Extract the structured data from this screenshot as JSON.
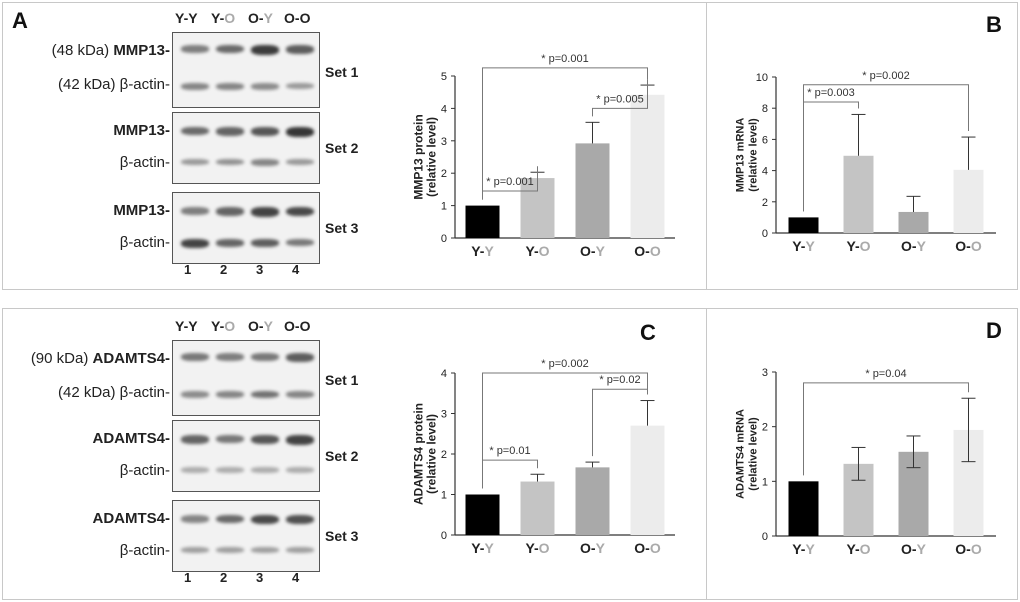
{
  "panels": {
    "A": {
      "label": "A",
      "lane_headers": [
        {
          "left": "Y",
          "right": "Y",
          "right_color": "#222222"
        },
        {
          "left": "Y",
          "right": "O",
          "right_color": "#aaaaaa"
        },
        {
          "left": "O",
          "right": "Y",
          "right_color": "#aaaaaa"
        },
        {
          "left": "O",
          "right": "O",
          "right_color": "#222222"
        }
      ],
      "sets": [
        {
          "set_label": "Set 1",
          "target_label": "(48 kDa) MMP13-",
          "target_kda": "(48 kDa) ",
          "target_name": "MMP13-",
          "actin_label": "(42 kDa) β-actin-"
        },
        {
          "set_label": "Set 2",
          "target_label": "MMP13-",
          "target_kda": "",
          "target_name": "MMP13-",
          "actin_label": "β-actin-"
        },
        {
          "set_label": "Set 3",
          "target_label": "MMP13-",
          "target_kda": "",
          "target_name": "MMP13-",
          "actin_label": "β-actin-"
        }
      ],
      "lane_numbers": [
        "1",
        "2",
        "3",
        "4"
      ]
    },
    "C_blot": {
      "label": "C",
      "lane_headers": [
        {
          "left": "Y",
          "right": "Y",
          "right_color": "#222222"
        },
        {
          "left": "Y",
          "right": "O",
          "right_color": "#aaaaaa"
        },
        {
          "left": "O",
          "right": "Y",
          "right_color": "#aaaaaa"
        },
        {
          "left": "O",
          "right": "O",
          "right_color": "#222222"
        }
      ],
      "sets": [
        {
          "set_label": "Set 1",
          "target_kda": "(90 kDa) ",
          "target_name": "ADAMTS4-",
          "actin_label": "(42 kDa) β-actin-"
        },
        {
          "set_label": "Set 2",
          "target_kda": "",
          "target_name": "ADAMTS4-",
          "actin_label": "β-actin-"
        },
        {
          "set_label": "Set 3",
          "target_kda": "",
          "target_name": "ADAMTS4-",
          "actin_label": "β-actin-"
        }
      ],
      "lane_numbers": [
        "1",
        "2",
        "3",
        "4"
      ]
    },
    "B": {
      "label": "B"
    },
    "D": {
      "label": "D"
    }
  },
  "colors": {
    "bar_black": "#000000",
    "bar_light": "#c4c4c4",
    "bar_mid": "#a9a9a9",
    "bar_pale": "#ececec",
    "label_grey": "#aaaaaa"
  },
  "chart_data": [
    {
      "id": "mmp13-protein",
      "type": "bar",
      "categories": [
        {
          "left": "Y",
          "right": "Y"
        },
        {
          "left": "Y",
          "right": "O"
        },
        {
          "left": "O",
          "right": "Y"
        },
        {
          "left": "O",
          "right": "O"
        }
      ],
      "values": [
        1.0,
        1.85,
        2.92,
        4.42
      ],
      "errors": [
        0,
        0.18,
        0.65,
        0.3
      ],
      "ylabel": "MMP13 protein\n(relative level)",
      "ylim": [
        0,
        5
      ],
      "yticks": [
        0,
        1,
        2,
        3,
        4,
        5
      ],
      "brackets": [
        {
          "from": 0,
          "to": 1,
          "y": 1.45,
          "label": "p=0.001",
          "star": "*"
        },
        {
          "from": 2,
          "to": 3,
          "y": 4.0,
          "label": "p=0.005",
          "star": "*"
        },
        {
          "from": 0,
          "to": 3,
          "y": 5.25,
          "label": "p=0.001",
          "star": "*"
        }
      ]
    },
    {
      "id": "mmp13-mrna",
      "type": "bar",
      "categories": [
        {
          "left": "Y",
          "right": "Y"
        },
        {
          "left": "Y",
          "right": "O"
        },
        {
          "left": "O",
          "right": "Y"
        },
        {
          "left": "O",
          "right": "O"
        }
      ],
      "values": [
        1.0,
        4.95,
        1.35,
        4.05
      ],
      "errors": [
        0,
        2.65,
        1.0,
        2.1
      ],
      "ylabel": "MMP13 mRNA\n(relative level)",
      "ylim": [
        0,
        10
      ],
      "yticks": [
        0,
        2,
        4,
        6,
        8,
        10
      ],
      "brackets": [
        {
          "from": 0,
          "to": 1,
          "y": 8.4,
          "label": "p=0.003",
          "star": "*"
        },
        {
          "from": 0,
          "to": 3,
          "y": 9.5,
          "label": "p=0.002",
          "star": "*"
        }
      ]
    },
    {
      "id": "adamts4-protein",
      "type": "bar",
      "categories": [
        {
          "left": "Y",
          "right": "Y"
        },
        {
          "left": "Y",
          "right": "O"
        },
        {
          "left": "O",
          "right": "Y"
        },
        {
          "left": "O",
          "right": "O"
        }
      ],
      "values": [
        1.0,
        1.32,
        1.67,
        2.7
      ],
      "errors": [
        0,
        0.18,
        0.13,
        0.62
      ],
      "ylabel": "ADAMTS4 protein\n(relative level)",
      "ylim": [
        0,
        4
      ],
      "yticks": [
        0,
        1,
        2,
        3,
        4
      ],
      "brackets": [
        {
          "from": 0,
          "to": 1,
          "y": 1.85,
          "label": "p=0.01",
          "star": "*"
        },
        {
          "from": 2,
          "to": 3,
          "y": 3.6,
          "label": "p=0.02",
          "star": "*"
        },
        {
          "from": 0,
          "to": 3,
          "y": 4.0,
          "label": "p=0.002",
          "star": "*"
        }
      ]
    },
    {
      "id": "adamts4-mrna",
      "type": "bar",
      "categories": [
        {
          "left": "Y",
          "right": "Y"
        },
        {
          "left": "Y",
          "right": "O"
        },
        {
          "left": "O",
          "right": "Y"
        },
        {
          "left": "O",
          "right": "O"
        }
      ],
      "values": [
        1.0,
        1.32,
        1.54,
        1.94
      ],
      "errors": [
        0,
        0.3,
        0.29,
        0.58
      ],
      "ylabel": "ADAMTS4 mRNA\n(relative level)",
      "ylim": [
        0,
        3
      ],
      "yticks": [
        0,
        1,
        2,
        3
      ],
      "brackets": [
        {
          "from": 0,
          "to": 3,
          "y": 2.8,
          "label": "p=0.04",
          "star": "*"
        }
      ]
    }
  ]
}
